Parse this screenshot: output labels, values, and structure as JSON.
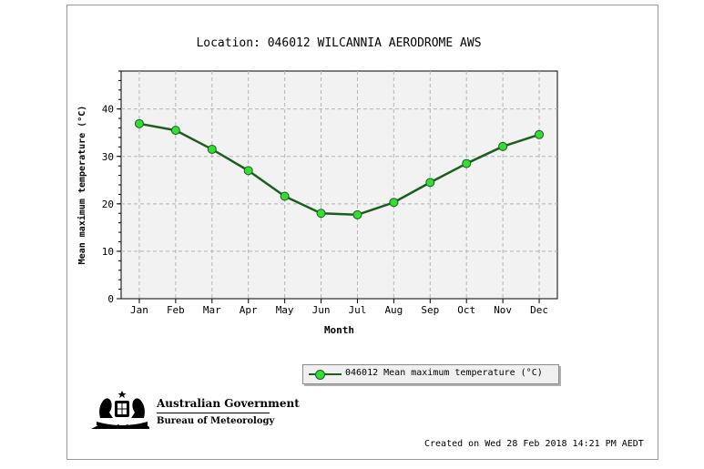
{
  "chart_data": {
    "type": "line",
    "title": "Location: 046012 WILCANNIA AERODROME AWS",
    "xlabel": "Month",
    "ylabel": "Mean maximum temperature (°C)",
    "categories": [
      "Jan",
      "Feb",
      "Mar",
      "Apr",
      "May",
      "Jun",
      "Jul",
      "Aug",
      "Sep",
      "Oct",
      "Nov",
      "Dec"
    ],
    "ylim": [
      0,
      48
    ],
    "yticks": [
      "0",
      "10",
      "20",
      "30",
      "40"
    ],
    "grid": true,
    "legend_position": "bottom-right",
    "series": [
      {
        "name": "046012 Mean maximum temperature (°C)",
        "values": [
          36.9,
          35.5,
          31.5,
          27.0,
          21.6,
          18.0,
          17.7,
          20.3,
          24.5,
          28.5,
          32.1,
          34.6
        ],
        "color": "#1b5e20",
        "marker_color": "#33dd33"
      }
    ]
  },
  "branding": {
    "government": "Australian Government",
    "bureau": "Bureau of Meteorology"
  },
  "footer": {
    "created": "Created on Wed 28 Feb 2018 14:21 PM AEDT"
  },
  "colors": {
    "plot_bg": "#f2f2f2",
    "grid": "#b4b4b4"
  }
}
